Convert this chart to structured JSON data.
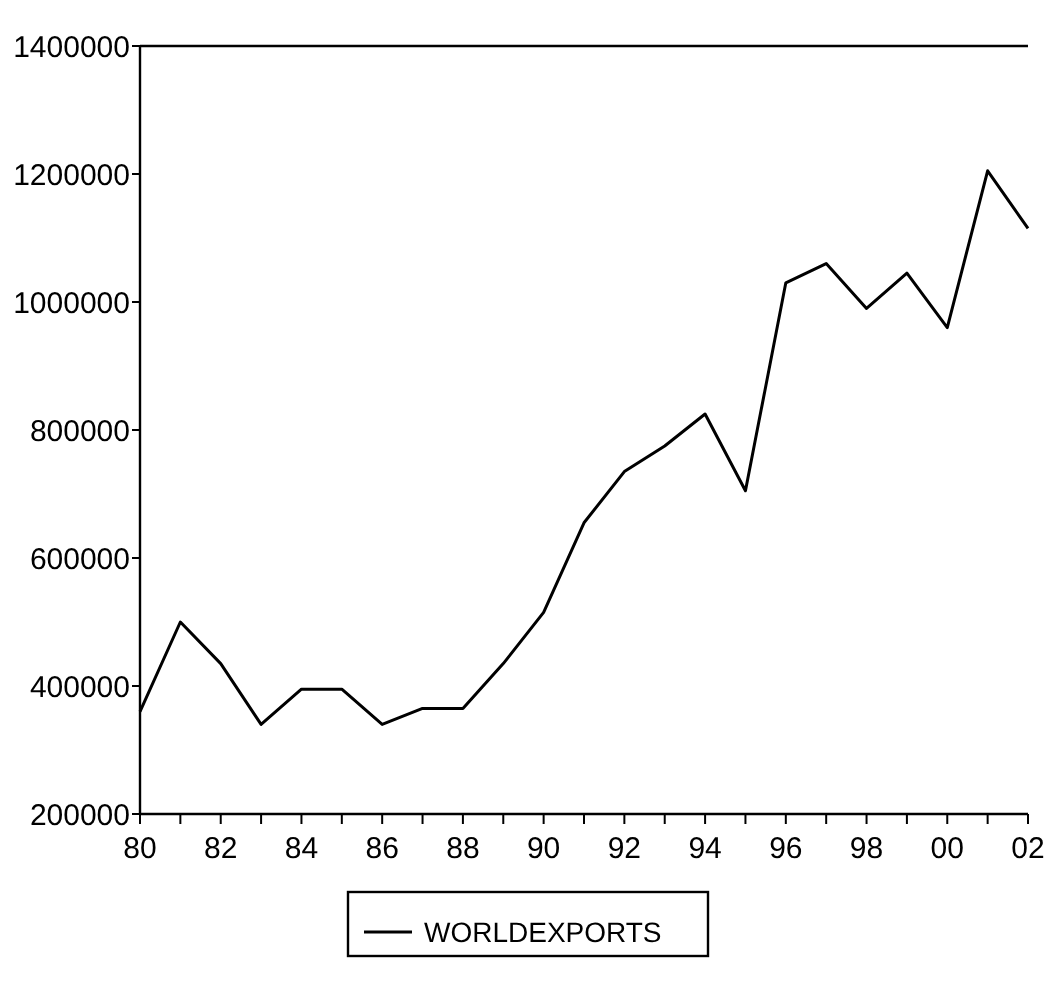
{
  "chart_data": {
    "type": "line",
    "x": [
      1980,
      1981,
      1982,
      1983,
      1984,
      1985,
      1986,
      1987,
      1988,
      1989,
      1990,
      1991,
      1992,
      1993,
      1994,
      1995,
      1996,
      1997,
      1998,
      1999,
      2000,
      2001,
      2002
    ],
    "series": [
      {
        "name": "WORLDEXPORTS",
        "color": "#000000",
        "values": [
          360000,
          500000,
          435000,
          340000,
          395000,
          395000,
          340000,
          365000,
          365000,
          435000,
          515000,
          655000,
          735000,
          775000,
          825000,
          705000,
          1030000,
          1060000,
          990000,
          1045000,
          960000,
          1205000,
          1115000
        ]
      }
    ],
    "xlim": [
      1980,
      2002
    ],
    "xticks": [
      {
        "value": 1980,
        "label": "80"
      },
      {
        "value": 1981,
        "label": null
      },
      {
        "value": 1982,
        "label": "82"
      },
      {
        "value": 1983,
        "label": null
      },
      {
        "value": 1984,
        "label": "84"
      },
      {
        "value": 1985,
        "label": null
      },
      {
        "value": 1986,
        "label": "86"
      },
      {
        "value": 1987,
        "label": null
      },
      {
        "value": 1988,
        "label": "88"
      },
      {
        "value": 1989,
        "label": null
      },
      {
        "value": 1990,
        "label": "90"
      },
      {
        "value": 1991,
        "label": null
      },
      {
        "value": 1992,
        "label": "92"
      },
      {
        "value": 1993,
        "label": null
      },
      {
        "value": 1994,
        "label": "94"
      },
      {
        "value": 1995,
        "label": null
      },
      {
        "value": 1996,
        "label": "96"
      },
      {
        "value": 1997,
        "label": null
      },
      {
        "value": 1998,
        "label": "98"
      },
      {
        "value": 1999,
        "label": null
      },
      {
        "value": 2000,
        "label": "00"
      },
      {
        "value": 2001,
        "label": null
      },
      {
        "value": 2002,
        "label": "02"
      }
    ],
    "ylim": [
      200000,
      1400000
    ],
    "yticks": [
      200000,
      400000,
      600000,
      800000,
      1000000,
      1200000,
      1400000
    ],
    "legend": "bottom",
    "grid": false,
    "marker": "none",
    "line_style": "solid"
  }
}
